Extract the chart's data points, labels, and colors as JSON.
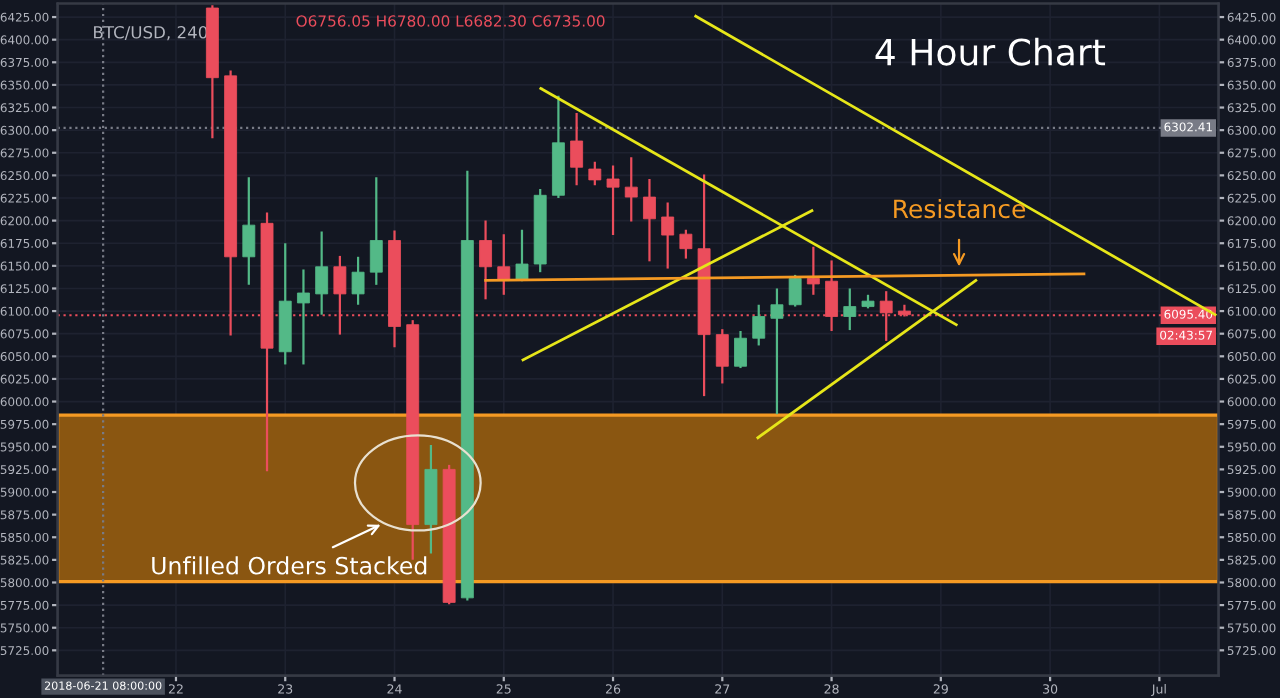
{
  "chart_data": {
    "type": "candlestick",
    "title": "BTC/USD, 240",
    "x": [
      "2018-06-22T08:00",
      "2018-06-22T12:00",
      "2018-06-22T16:00",
      "2018-06-22T20:00",
      "2018-06-23T00:00",
      "2018-06-23T04:00",
      "2018-06-23T08:00",
      "2018-06-23T12:00",
      "2018-06-23T16:00",
      "2018-06-23T20:00",
      "2018-06-24T00:00",
      "2018-06-24T04:00",
      "2018-06-24T08:00",
      "2018-06-24T12:00",
      "2018-06-24T16:00",
      "2018-06-24T20:00",
      "2018-06-25T00:00",
      "2018-06-25T04:00",
      "2018-06-25T08:00",
      "2018-06-25T12:00",
      "2018-06-25T16:00",
      "2018-06-25T20:00",
      "2018-06-26T00:00",
      "2018-06-26T04:00",
      "2018-06-26T08:00",
      "2018-06-26T12:00",
      "2018-06-26T16:00",
      "2018-06-26T20:00",
      "2018-06-27T00:00",
      "2018-06-27T04:00",
      "2018-06-27T08:00",
      "2018-06-27T12:00",
      "2018-06-27T16:00",
      "2018-06-27T20:00",
      "2018-06-28T00:00",
      "2018-06-28T04:00",
      "2018-06-28T08:00",
      "2018-06-28T12:00",
      "2018-06-28T16:00"
    ],
    "ohlc": [
      [
        6435,
        6438,
        6291,
        6358
      ],
      [
        6360,
        6366,
        6073,
        6160
      ],
      [
        6160,
        6248,
        6129,
        6195
      ],
      [
        6197,
        6209,
        5923,
        6059
      ],
      [
        6055,
        6175,
        6041,
        6111
      ],
      [
        6109,
        6146,
        6041,
        6120
      ],
      [
        6119,
        6188,
        6096,
        6149
      ],
      [
        6149,
        6161,
        6074,
        6119
      ],
      [
        6119,
        6160,
        6107,
        6143
      ],
      [
        6143,
        6248,
        6129,
        6178
      ],
      [
        6178,
        6189,
        6060,
        6083
      ],
      [
        6085,
        6090,
        5825,
        5864
      ],
      [
        5864,
        5952,
        5832,
        5925
      ],
      [
        5925,
        5930,
        5776,
        5778
      ],
      [
        5783,
        6255,
        5780,
        6178
      ],
      [
        6178,
        6200,
        6113,
        6149
      ],
      [
        6149,
        6185,
        6118,
        6135
      ],
      [
        6135,
        6190,
        6133,
        6152
      ],
      [
        6152,
        6235,
        6143,
        6228
      ],
      [
        6228,
        6338,
        6225,
        6286
      ],
      [
        6288,
        6319,
        6239,
        6259
      ],
      [
        6257,
        6265,
        6239,
        6245
      ],
      [
        6246,
        6261,
        6184,
        6237
      ],
      [
        6237,
        6270,
        6199,
        6226
      ],
      [
        6226,
        6246,
        6155,
        6202
      ],
      [
        6204,
        6220,
        6147,
        6184
      ],
      [
        6185,
        6190,
        6158,
        6169
      ],
      [
        6169,
        6251,
        6006,
        6074
      ],
      [
        6074,
        6080,
        6020,
        6039
      ],
      [
        6039,
        6078,
        6037,
        6070
      ],
      [
        6070,
        6107,
        6062,
        6094
      ],
      [
        6092,
        6125,
        5986,
        6107
      ],
      [
        6107,
        6140,
        6105,
        6136
      ],
      [
        6136,
        6171,
        6118,
        6130
      ],
      [
        6133,
        6156,
        6078,
        6094
      ],
      [
        6094,
        6125,
        6079,
        6105
      ],
      [
        6105,
        6118,
        6103,
        6111
      ],
      [
        6111,
        6122,
        6067,
        6098
      ],
      [
        6100,
        6107,
        6094,
        6096
      ]
    ],
    "colors": [
      "#eb4d5c",
      "#eb4d5c",
      "#53b987",
      "#eb4d5c",
      "#53b987",
      "#53b987",
      "#53b987",
      "#eb4d5c",
      "#53b987",
      "#53b987",
      "#eb4d5c",
      "#eb4d5c",
      "#53b987",
      "#eb4d5c",
      "#53b987",
      "#eb4d5c",
      "#eb4d5c",
      "#53b987",
      "#53b987",
      "#53b987",
      "#eb4d5c",
      "#eb4d5c",
      "#eb4d5c",
      "#eb4d5c",
      "#eb4d5c",
      "#eb4d5c",
      "#eb4d5c",
      "#eb4d5c",
      "#eb4d5c",
      "#53b987",
      "#53b987",
      "#53b987",
      "#53b987",
      "#eb4d5c",
      "#eb4d5c",
      "#53b987",
      "#53b987",
      "#eb4d5c",
      "#eb4d5c"
    ],
    "series": [
      {
        "type": "line",
        "color": "#e6e619",
        "x": [
          "2018-06-26T18:10",
          "2018-07-01T12:15"
        ],
        "values": [
          6426,
          6096
        ]
      },
      {
        "type": "line",
        "color": "#e6e619",
        "x": [
          "2018-06-25T08:08",
          "2018-06-29T03:23"
        ],
        "values": [
          6346,
          6085
        ]
      },
      {
        "type": "line",
        "color": "#e6e619",
        "x": [
          "2018-06-25T04:13",
          "2018-06-27T19:41"
        ],
        "values": [
          6046,
          6211
        ]
      },
      {
        "type": "line",
        "color": "#e6e619",
        "x": [
          "2018-06-27T07:49",
          "2018-06-29T07:41"
        ],
        "values": [
          5960,
          6134
        ]
      },
      {
        "type": "line",
        "color": "#f59a23",
        "x": [
          "2018-06-24T20:01",
          "2018-06-30T07:26"
        ],
        "values": [
          6134,
          6141
        ]
      }
    ],
    "bands": [
      {
        "axis": "y",
        "from": 5801,
        "to": 5985,
        "color": "#8a5611"
      }
    ],
    "ref_lines": [
      {
        "axis": "y",
        "value": 6095.4,
        "label": "6095.40",
        "color": "#eb4d5c",
        "line_style": "dotted"
      },
      {
        "axis": "y",
        "value": 6302.41,
        "label": "6302.41",
        "color": "#787b86",
        "line_style": "dotted"
      },
      {
        "axis": "x",
        "value": "2018-06-21T08:00",
        "label": "2018-06-21 08:00:00",
        "color": "#787b86",
        "line_style": "dotted"
      }
    ],
    "annotations": [
      "O6756.05 H6780.00 L6682.30 C6735.00",
      "4 Hour Chart",
      {
        "text": "Resistance",
        "x": "2018-06-29T04:00",
        "y": 6140
      },
      {
        "text": "Unfilled Orders Stacked",
        "x": "2018-06-24T08:00",
        "y": 5890
      },
      "02:43:57"
    ],
    "xlim": [
      "2018-06-20T22:00",
      "2018-07-01T13:00"
    ],
    "xticks": [
      {
        "value": "2018-06-22",
        "label": "22"
      },
      {
        "value": "2018-06-23",
        "label": "23"
      },
      {
        "value": "2018-06-24",
        "label": "24"
      },
      {
        "value": "2018-06-25",
        "label": "25"
      },
      {
        "value": "2018-06-26",
        "label": "26"
      },
      {
        "value": "2018-06-27",
        "label": "27"
      },
      {
        "value": "2018-06-28",
        "label": "28"
      },
      {
        "value": "2018-06-29",
        "label": "29"
      },
      {
        "value": "2018-06-30",
        "label": "30"
      },
      {
        "value": "2018-07-01",
        "label": "Jul"
      }
    ],
    "ylim": [
      5697,
      6440
    ],
    "yticks": [
      {
        "value": 5725,
        "label": "5725.00"
      },
      {
        "value": 5750,
        "label": "5750.00"
      },
      {
        "value": 5775,
        "label": "5775.00"
      },
      {
        "value": 5800,
        "label": "5800.00"
      },
      {
        "value": 5825,
        "label": "5825.00"
      },
      {
        "value": 5850,
        "label": "5850.00"
      },
      {
        "value": 5875,
        "label": "5875.00"
      },
      {
        "value": 5900,
        "label": "5900.00"
      },
      {
        "value": 5925,
        "label": "5925.00"
      },
      {
        "value": 5950,
        "label": "5950.00"
      },
      {
        "value": 5975,
        "label": "5975.00"
      },
      {
        "value": 6000,
        "label": "6000.00"
      },
      {
        "value": 6025,
        "label": "6025.00"
      },
      {
        "value": 6050,
        "label": "6050.00"
      },
      {
        "value": 6075,
        "label": "6075.00"
      },
      {
        "value": 6100,
        "label": "6100.00"
      },
      {
        "value": 6125,
        "label": "6125.00"
      },
      {
        "value": 6150,
        "label": "6150.00"
      },
      {
        "value": 6175,
        "label": "6175.00"
      },
      {
        "value": 6200,
        "label": "6200.00"
      },
      {
        "value": 6225,
        "label": "6225.00"
      },
      {
        "value": 6250,
        "label": "6250.00"
      },
      {
        "value": 6275,
        "label": "6275.00"
      },
      {
        "value": 6300,
        "label": "6300.00"
      },
      {
        "value": 6325,
        "label": "6325.00"
      },
      {
        "value": 6350,
        "label": "6350.00"
      },
      {
        "value": 6375,
        "label": "6375.00"
      },
      {
        "value": 6400,
        "label": "6400.00"
      },
      {
        "value": 6425,
        "label": "6425.00"
      }
    ],
    "y2lim": [
      5697,
      6440
    ],
    "y2ticks": [
      {
        "value": 5725,
        "label": "5725.00"
      },
      {
        "value": 5750,
        "label": "5750.00"
      },
      {
        "value": 5775,
        "label": "5775.00"
      },
      {
        "value": 5800,
        "label": "5800.00"
      },
      {
        "value": 5825,
        "label": "5825.00"
      },
      {
        "value": 5850,
        "label": "5850.00"
      },
      {
        "value": 5875,
        "label": "5875.00"
      },
      {
        "value": 5900,
        "label": "5900.00"
      },
      {
        "value": 5925,
        "label": "5925.00"
      },
      {
        "value": 5950,
        "label": "5950.00"
      },
      {
        "value": 5975,
        "label": "5975.00"
      },
      {
        "value": 6000,
        "label": "6000.00"
      },
      {
        "value": 6025,
        "label": "6025.00"
      },
      {
        "value": 6050,
        "label": "6050.00"
      },
      {
        "value": 6075,
        "label": "6075.00"
      },
      {
        "value": 6100,
        "label": "6100.00"
      },
      {
        "value": 6125,
        "label": "6125.00"
      },
      {
        "value": 6150,
        "label": "6150.00"
      },
      {
        "value": 6175,
        "label": "6175.00"
      },
      {
        "value": 6200,
        "label": "6200.00"
      },
      {
        "value": 6225,
        "label": "6225.00"
      },
      {
        "value": 6250,
        "label": "6250.00"
      },
      {
        "value": 6275,
        "label": "6275.00"
      },
      {
        "value": 6300,
        "label": "6300.00"
      },
      {
        "value": 6325,
        "label": "6325.00"
      },
      {
        "value": 6350,
        "label": "6350.00"
      },
      {
        "value": 6375,
        "label": "6375.00"
      },
      {
        "value": 6400,
        "label": "6400.00"
      },
      {
        "value": 6425,
        "label": "6425.00"
      }
    ],
    "grid": true
  }
}
